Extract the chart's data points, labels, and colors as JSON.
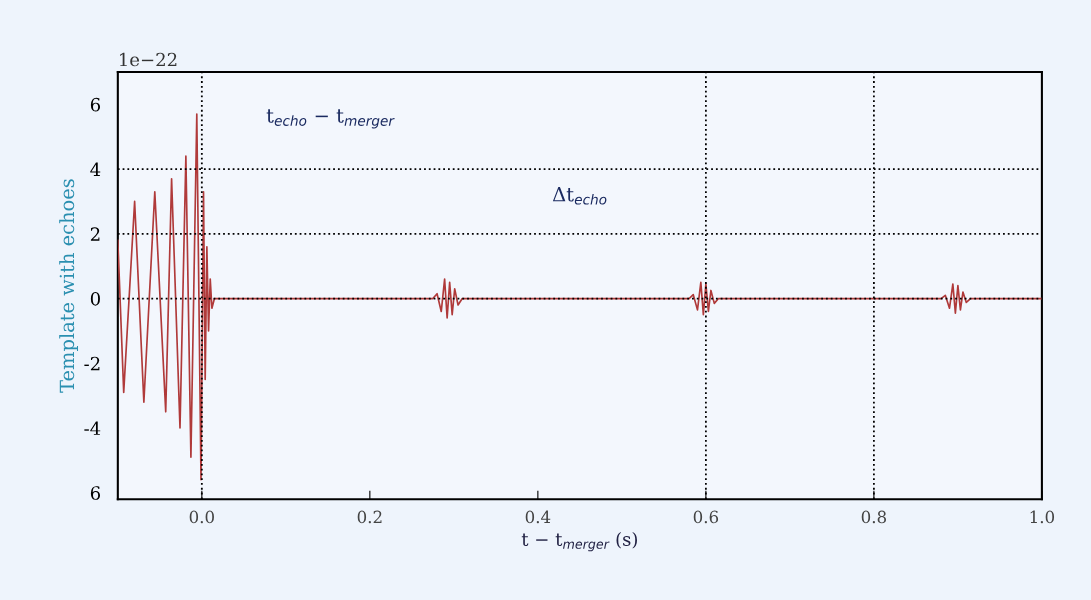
{
  "chart_data": {
    "type": "line",
    "xlabel": "t − t$_{merger}$ (s)",
    "ylabel": "Template with echoes",
    "xlim": [
      -0.1,
      1.0
    ],
    "ylim": [
      -6.2,
      7
    ],
    "xticks": [
      {
        "value": 0.0,
        "label": "0.0"
      },
      {
        "value": 0.2,
        "label": "0.2"
      },
      {
        "value": 0.4,
        "label": "0.4"
      },
      {
        "value": 0.6,
        "label": "0.6"
      },
      {
        "value": 0.8,
        "label": "0.8"
      },
      {
        "value": 1.0,
        "label": "1.0"
      }
    ],
    "yticks": [
      {
        "value": -6,
        "label": "6"
      },
      -4,
      -2,
      0,
      2,
      4,
      6
    ],
    "grid": false,
    "legend": false,
    "line_style": "solid",
    "marker": "none",
    "annotations": [
      "1e−22",
      "t$_{echo}$ − t$_{merger}$",
      "Δt$_{echo}$"
    ],
    "ref_lines": [
      {
        "axis": "y",
        "value": 0,
        "color": "#000000",
        "line_style": "dotted"
      },
      {
        "axis": "y",
        "value": 2,
        "color": "#000000",
        "line_style": "dotted"
      },
      {
        "axis": "y",
        "value": 4,
        "color": "#000000",
        "line_style": "dotted"
      },
      {
        "axis": "x",
        "value": 0.0,
        "color": "#000000",
        "line_style": "dotted"
      },
      {
        "axis": "x",
        "value": 0.6,
        "color": "#000000",
        "line_style": "dotted"
      },
      {
        "axis": "x",
        "value": 0.8,
        "color": "#000000",
        "line_style": "dotted"
      }
    ],
    "series": [
      {
        "color": "#b03a3a",
        "x": [
          -0.1,
          -0.093,
          -0.08,
          -0.069,
          -0.056,
          -0.043,
          -0.036,
          -0.026,
          -0.019,
          -0.013,
          -0.006,
          -0.001,
          0.002,
          0.004,
          0.006,
          0.008,
          0.01,
          0.012,
          0.015,
          0.275,
          0.28,
          0.285,
          0.289,
          0.292,
          0.295,
          0.298,
          0.301,
          0.305,
          0.31,
          0.58,
          0.585,
          0.59,
          0.594,
          0.597,
          0.6,
          0.603,
          0.606,
          0.61,
          0.615,
          0.88,
          0.885,
          0.89,
          0.894,
          0.897,
          0.9,
          0.903,
          0.906,
          0.91,
          0.915,
          1.0
        ],
        "values": [
          1.8,
          -2.9,
          3.0,
          -3.2,
          3.3,
          -3.5,
          3.7,
          -4.0,
          4.4,
          -4.9,
          5.7,
          -5.6,
          3.3,
          -2.5,
          1.6,
          -1.0,
          0.6,
          -0.3,
          0,
          0,
          0.15,
          -0.4,
          0.6,
          -0.6,
          0.5,
          -0.5,
          0.3,
          -0.2,
          0,
          0,
          0.12,
          -0.35,
          0.5,
          -0.5,
          0.45,
          -0.4,
          0.25,
          -0.15,
          0,
          0,
          0.1,
          -0.3,
          0.45,
          -0.45,
          0.4,
          -0.35,
          0.2,
          -0.12,
          0,
          0
        ]
      }
    ]
  }
}
